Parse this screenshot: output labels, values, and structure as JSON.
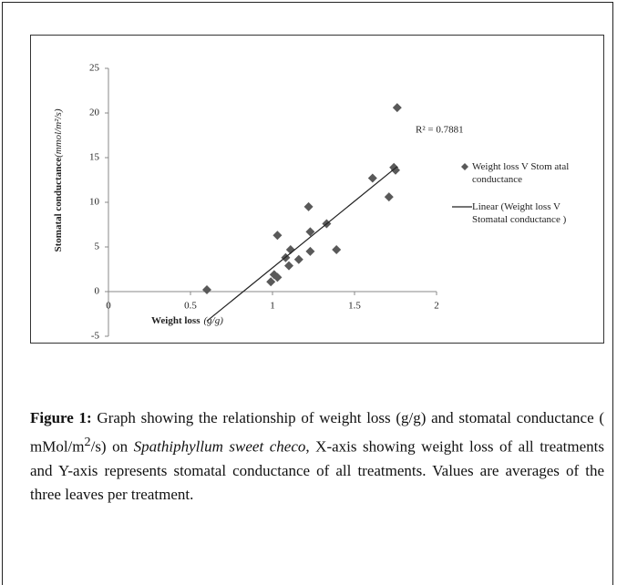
{
  "chart_data": {
    "type": "scatter",
    "y_label": "Stomatal  conductance",
    "y_label_unit": "(mmol/m²/s)",
    "x_label": "Weight loss",
    "x_label_unit": "(g/g)",
    "annotation": "R² = 0.7881",
    "xlim": [
      0,
      2
    ],
    "xticks": [
      0,
      0.5,
      1,
      1.5,
      2
    ],
    "ylim": [
      -5,
      25
    ],
    "yticks": [
      -5,
      0,
      5,
      10,
      15,
      20,
      25
    ],
    "series": [
      {
        "name": "Weight loss V Stom atal conductance",
        "color": "#595959",
        "x": [
          0.6,
          0.99,
          1.01,
          1.03,
          1.03,
          1.08,
          1.1,
          1.11,
          1.16,
          1.22,
          1.23,
          1.23,
          1.33,
          1.39,
          1.61,
          1.71,
          1.74,
          1.75,
          1.76
        ],
        "values": [
          0.2,
          1.1,
          1.9,
          1.6,
          6.3,
          3.8,
          2.9,
          4.7,
          3.6,
          9.5,
          6.7,
          4.5,
          7.6,
          4.7,
          12.7,
          10.6,
          13.9,
          13.6,
          20.6
        ]
      },
      {
        "name": "Linear (Weight loss V Stomatal conductance )",
        "color": "#222222",
        "type": "line",
        "x": [
          0.6,
          1.76
        ],
        "values": [
          -3.3,
          14
        ]
      }
    ]
  },
  "caption": {
    "label": "Figure 1:",
    "text1": " Graph showing the relationship of weight loss (g/g) and stomatal conductance ( mMol/m",
    "sup": "2",
    "text2": "/s) on ",
    "species": "Spathiphyllum sweet checo",
    "text3": ", X-axis showing weight loss of all treatments and Y-axis represents stomatal conductance of all treatments. Values are averages of the three leaves per treatment."
  }
}
